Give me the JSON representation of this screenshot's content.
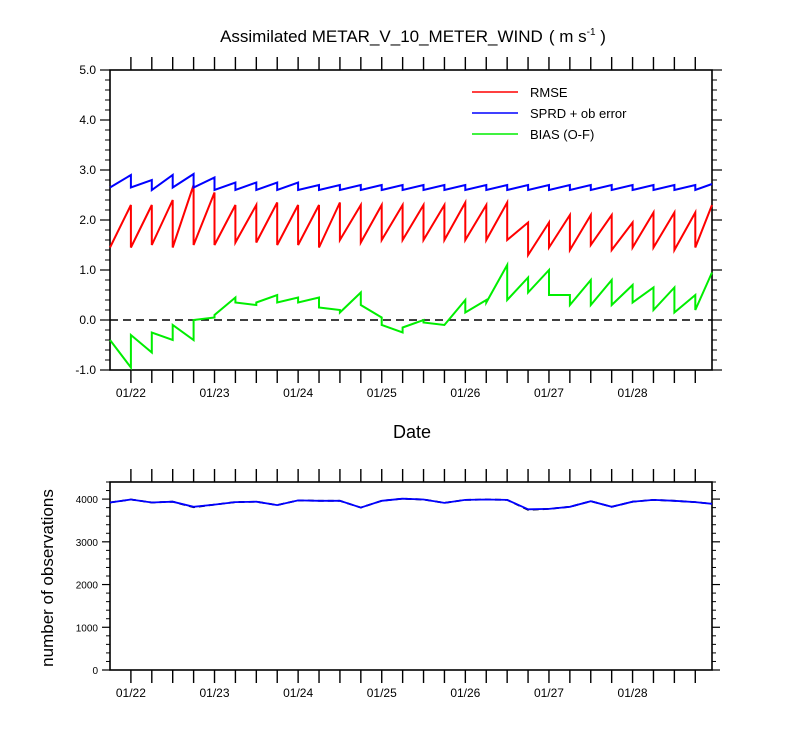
{
  "title": {
    "main": "Assimilated METAR_V_10_METER_WIND",
    "unit_open": "( m s",
    "unit_sup": "-1",
    "unit_close": " )"
  },
  "chart_data": [
    {
      "type": "line",
      "xlabel": "Date",
      "ylabel": "",
      "xlim": [
        0,
        7.2
      ],
      "ylim": [
        -1.0,
        5.0
      ],
      "x_tick_labels": [
        {
          "x": 0.25,
          "label": "01/22"
        },
        {
          "x": 1.25,
          "label": "01/23"
        },
        {
          "x": 2.25,
          "label": "01/24"
        },
        {
          "x": 3.25,
          "label": "01/25"
        },
        {
          "x": 4.25,
          "label": "01/26"
        },
        {
          "x": 5.25,
          "label": "01/27"
        },
        {
          "x": 6.25,
          "label": "01/28"
        }
      ],
      "y_ticks": [
        {
          "value": 5.0,
          "label": "5.0"
        },
        {
          "value": 4.0,
          "label": "4.0"
        },
        {
          "value": 3.0,
          "label": "3.0"
        },
        {
          "value": 2.0,
          "label": "2.0"
        },
        {
          "value": 1.0,
          "label": "1.0"
        },
        {
          "value": 0.0,
          "label": "0.0"
        },
        {
          "value": -1.0,
          "label": "-1.0"
        }
      ],
      "reference_line": {
        "y": 0.0,
        "style": "dashed",
        "color": "#000000"
      },
      "legend": {
        "position": "top-right"
      },
      "series": [
        {
          "name": "RMSE",
          "color": "#ff0000",
          "x": [
            0.0,
            0.25,
            0.25,
            0.5,
            0.5,
            0.75,
            0.75,
            1.0,
            1.0,
            1.25,
            1.25,
            1.5,
            1.5,
            1.75,
            1.75,
            2.0,
            2.0,
            2.25,
            2.25,
            2.5,
            2.5,
            2.75,
            2.75,
            3.0,
            3.0,
            3.25,
            3.25,
            3.5,
            3.5,
            3.75,
            3.75,
            4.0,
            4.0,
            4.25,
            4.25,
            4.5,
            4.5,
            4.75,
            4.75,
            5.0,
            5.0,
            5.25,
            5.25,
            5.5,
            5.5,
            5.75,
            5.75,
            6.0,
            6.0,
            6.25,
            6.25,
            6.5,
            6.5,
            6.75,
            6.75,
            7.0,
            7.0,
            7.2
          ],
          "values": [
            1.45,
            2.3,
            1.45,
            2.3,
            1.5,
            2.4,
            1.45,
            2.7,
            1.5,
            2.55,
            1.5,
            2.3,
            1.55,
            2.3,
            1.55,
            2.35,
            1.5,
            2.3,
            1.5,
            2.3,
            1.45,
            2.35,
            1.6,
            2.3,
            1.55,
            2.3,
            1.6,
            2.3,
            1.6,
            2.3,
            1.6,
            2.3,
            1.6,
            2.35,
            1.6,
            2.3,
            1.6,
            2.35,
            1.6,
            1.95,
            1.3,
            1.95,
            1.45,
            2.1,
            1.4,
            2.1,
            1.5,
            2.1,
            1.4,
            1.95,
            1.45,
            2.15,
            1.45,
            2.15,
            1.4,
            2.15,
            1.45,
            2.3
          ]
        },
        {
          "name": "SPRD + ob error",
          "color": "#0000ff",
          "x": [
            0.0,
            0.25,
            0.25,
            0.5,
            0.5,
            0.75,
            0.75,
            1.0,
            1.0,
            1.25,
            1.25,
            1.5,
            1.5,
            1.75,
            1.75,
            2.0,
            2.0,
            2.25,
            2.25,
            2.5,
            2.5,
            2.75,
            2.75,
            3.0,
            3.0,
            3.25,
            3.25,
            3.5,
            3.5,
            3.75,
            3.75,
            4.0,
            4.0,
            4.25,
            4.25,
            4.5,
            4.5,
            4.75,
            4.75,
            5.0,
            5.0,
            5.25,
            5.25,
            5.5,
            5.5,
            5.75,
            5.75,
            6.0,
            6.0,
            6.25,
            6.25,
            6.5,
            6.5,
            6.75,
            6.75,
            7.0,
            7.0,
            7.2
          ],
          "values": [
            2.65,
            2.9,
            2.65,
            2.8,
            2.6,
            2.9,
            2.65,
            2.92,
            2.65,
            2.85,
            2.6,
            2.75,
            2.6,
            2.75,
            2.6,
            2.75,
            2.6,
            2.75,
            2.6,
            2.7,
            2.6,
            2.7,
            2.6,
            2.7,
            2.6,
            2.7,
            2.6,
            2.7,
            2.6,
            2.7,
            2.6,
            2.7,
            2.6,
            2.7,
            2.6,
            2.7,
            2.6,
            2.7,
            2.6,
            2.7,
            2.6,
            2.7,
            2.6,
            2.7,
            2.6,
            2.7,
            2.6,
            2.7,
            2.6,
            2.7,
            2.6,
            2.7,
            2.6,
            2.7,
            2.6,
            2.7,
            2.6,
            2.72
          ]
        },
        {
          "name": "BIAS (O-F)",
          "color": "#00ee00",
          "x": [
            0.0,
            0.25,
            0.25,
            0.5,
            0.5,
            0.75,
            0.75,
            1.0,
            1.0,
            1.25,
            1.25,
            1.5,
            1.5,
            1.75,
            1.75,
            2.0,
            2.0,
            2.25,
            2.25,
            2.5,
            2.5,
            2.75,
            2.75,
            3.0,
            3.0,
            3.25,
            3.25,
            3.5,
            3.5,
            3.75,
            3.75,
            4.0,
            4.0,
            4.25,
            4.25,
            4.5,
            4.5,
            4.75,
            4.75,
            5.0,
            5.0,
            5.25,
            5.25,
            5.5,
            5.5,
            5.75,
            5.75,
            6.0,
            6.0,
            6.25,
            6.25,
            6.5,
            6.5,
            6.75,
            6.75,
            7.0,
            7.0,
            7.2
          ],
          "values": [
            -0.4,
            -0.95,
            -0.3,
            -0.65,
            -0.25,
            -0.4,
            -0.1,
            -0.4,
            0.0,
            0.05,
            0.1,
            0.45,
            0.35,
            0.3,
            0.35,
            0.5,
            0.35,
            0.45,
            0.35,
            0.45,
            0.25,
            0.2,
            0.15,
            0.55,
            0.3,
            0.05,
            -0.1,
            -0.25,
            -0.15,
            0.0,
            -0.05,
            -0.1,
            -0.1,
            0.4,
            0.15,
            0.4,
            0.35,
            1.1,
            0.4,
            0.85,
            0.55,
            1.0,
            0.5,
            0.5,
            0.3,
            0.8,
            0.3,
            0.8,
            0.3,
            0.7,
            0.35,
            0.65,
            0.2,
            0.65,
            0.15,
            0.5,
            0.2,
            0.95
          ]
        }
      ]
    },
    {
      "type": "line",
      "ylabel": "number of observations",
      "xlim": [
        0,
        7.2
      ],
      "ylim": [
        0,
        4400
      ],
      "x_tick_labels": [
        {
          "x": 0.25,
          "label": "01/22"
        },
        {
          "x": 1.25,
          "label": "01/23"
        },
        {
          "x": 2.25,
          "label": "01/24"
        },
        {
          "x": 3.25,
          "label": "01/25"
        },
        {
          "x": 4.25,
          "label": "01/26"
        },
        {
          "x": 5.25,
          "label": "01/27"
        },
        {
          "x": 6.25,
          "label": "01/28"
        }
      ],
      "y_ticks": [
        {
          "value": 4000,
          "label": "4000"
        },
        {
          "value": 3000,
          "label": "3000"
        },
        {
          "value": 2000,
          "label": "2000"
        },
        {
          "value": 1000,
          "label": "1000"
        },
        {
          "value": 0,
          "label": "0"
        }
      ],
      "series": [
        {
          "color": "#000000",
          "style": "dashed",
          "x": [
            0.0,
            0.25,
            0.5,
            0.75,
            1.0,
            1.25,
            1.5,
            1.75,
            2.0,
            2.25,
            2.5,
            2.75,
            3.0,
            3.25,
            3.5,
            3.75,
            4.0,
            4.25,
            4.5,
            4.75,
            5.0,
            5.25,
            5.5,
            5.75,
            6.0,
            6.25,
            6.5,
            6.75,
            7.0,
            7.2
          ],
          "values": [
            3920,
            3990,
            3920,
            3940,
            3810,
            3870,
            3930,
            3940,
            3860,
            3970,
            3960,
            3960,
            3800,
            3960,
            4010,
            3990,
            3910,
            3980,
            3990,
            3980,
            3750,
            3770,
            3820,
            3950,
            3820,
            3940,
            3980,
            3960,
            3930,
            3890
          ]
        },
        {
          "color": "#0000ff",
          "style": "solid",
          "x": [
            0.0,
            0.25,
            0.5,
            0.75,
            1.0,
            1.25,
            1.5,
            1.75,
            2.0,
            2.25,
            2.5,
            2.75,
            3.0,
            3.25,
            3.5,
            3.75,
            4.0,
            4.25,
            4.5,
            4.75,
            5.0,
            5.25,
            5.5,
            5.75,
            6.0,
            6.25,
            6.5,
            6.75,
            7.0,
            7.2
          ],
          "values": [
            3920,
            3990,
            3920,
            3940,
            3820,
            3870,
            3930,
            3940,
            3860,
            3970,
            3960,
            3960,
            3800,
            3960,
            4010,
            3990,
            3910,
            3980,
            3990,
            3980,
            3760,
            3770,
            3820,
            3950,
            3820,
            3940,
            3980,
            3960,
            3930,
            3890
          ]
        }
      ]
    }
  ]
}
